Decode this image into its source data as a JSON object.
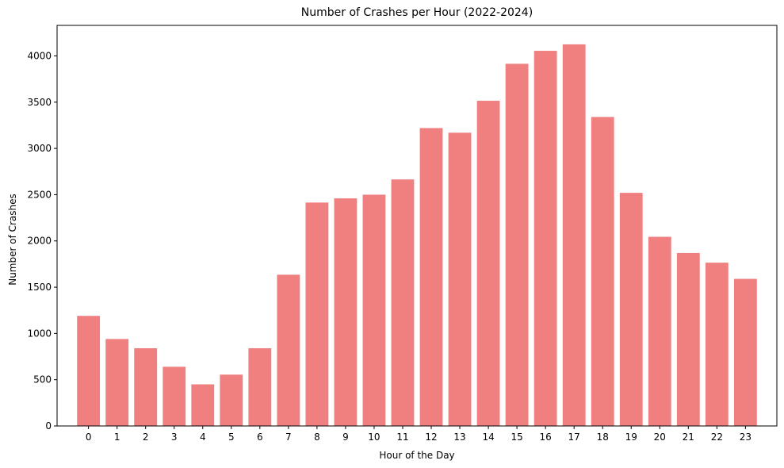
{
  "chart_data": {
    "type": "bar",
    "title": "Number of Crashes per Hour (2022-2024)",
    "xlabel": "Hour of the Day",
    "ylabel": "Number of Crashes",
    "categories": [
      "0",
      "1",
      "2",
      "3",
      "4",
      "5",
      "6",
      "7",
      "8",
      "9",
      "10",
      "11",
      "12",
      "13",
      "14",
      "15",
      "16",
      "17",
      "18",
      "19",
      "20",
      "21",
      "22",
      "23"
    ],
    "values": [
      1190,
      940,
      840,
      640,
      450,
      555,
      840,
      1635,
      2415,
      2460,
      2500,
      2665,
      3220,
      3170,
      3515,
      3915,
      4055,
      4125,
      3340,
      2520,
      2045,
      1870,
      1765,
      1590
    ],
    "yticks": [
      "0",
      "500",
      "1000",
      "1500",
      "2000",
      "2500",
      "3000",
      "3500",
      "4000"
    ],
    "ylim": [
      0,
      4330
    ],
    "bar_color": "#f08080",
    "grid": false,
    "legend": "none"
  }
}
